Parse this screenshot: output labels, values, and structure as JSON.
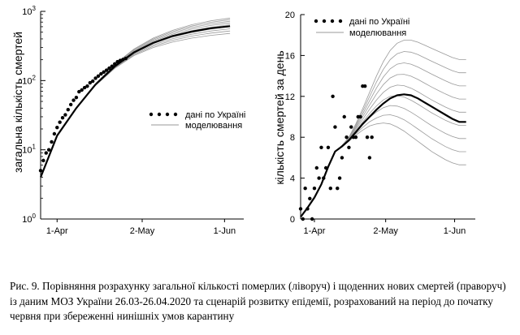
{
  "colors": {
    "axis": "#000000",
    "data": "#000000",
    "model_band": "#9a9a9a",
    "model_main": "#000000"
  },
  "legend": {
    "data_label": "дані по Україні",
    "model_label": "моделювання"
  },
  "caption": "Рис. 9. Порівняння розрахунку загальної кількості померлих (ліворуч) і щоденних нових смертей (праворуч) із даним МОЗ України 26.03-26.04.2020 та сценарій розвитку епідемії, розрахований на період до початку червня при збереженні нинішніх умов карантину",
  "chart_data": [
    {
      "type": "scatter",
      "ylabel": "загальна кількість смертей",
      "yscale": "log",
      "ylim": [
        1,
        1000
      ],
      "ytick_base": "10",
      "ytick_exponents": [
        "0",
        "1",
        "2",
        "3"
      ],
      "xticks": [
        "1-Apr",
        "2-May",
        "1-Jun"
      ],
      "xlim": [
        "2020-03-26",
        "2020-06-08"
      ],
      "legend_placement": "center-right",
      "grid": false,
      "series": [
        {
          "name": "дані по Україні",
          "kind": "points",
          "x": [
            "2020-03-26",
            "2020-03-27",
            "2020-03-28",
            "2020-03-29",
            "2020-03-30",
            "2020-03-31",
            "2020-04-01",
            "2020-04-02",
            "2020-04-03",
            "2020-04-04",
            "2020-04-05",
            "2020-04-06",
            "2020-04-07",
            "2020-04-08",
            "2020-04-09",
            "2020-04-10",
            "2020-04-11",
            "2020-04-12",
            "2020-04-13",
            "2020-04-14",
            "2020-04-15",
            "2020-04-16",
            "2020-04-17",
            "2020-04-18",
            "2020-04-19",
            "2020-04-20",
            "2020-04-21",
            "2020-04-22",
            "2020-04-23",
            "2020-04-24",
            "2020-04-25",
            "2020-04-26"
          ],
          "y": [
            5,
            7,
            9,
            10,
            13,
            17,
            21,
            25,
            29,
            32,
            38,
            45,
            52,
            57,
            69,
            73,
            79,
            83,
            93,
            98,
            108,
            116,
            125,
            133,
            141,
            151,
            161,
            174,
            187,
            195,
            201,
            209
          ]
        },
        {
          "name": "моделювання",
          "kind": "band",
          "x": [
            "2020-03-26",
            "2020-04-01",
            "2020-04-08",
            "2020-04-15",
            "2020-04-22",
            "2020-04-29",
            "2020-05-06",
            "2020-05-13",
            "2020-05-20",
            "2020-05-27",
            "2020-06-03"
          ],
          "y_low": [
            4,
            16,
            40,
            85,
            150,
            230,
            300,
            360,
            410,
            450,
            480
          ],
          "y_mid": [
            4,
            16,
            40,
            88,
            160,
            255,
            350,
            440,
            510,
            570,
            610
          ],
          "y_high": [
            4,
            16,
            40,
            90,
            172,
            285,
            410,
            530,
            640,
            730,
            800
          ],
          "curves": 9
        }
      ]
    },
    {
      "type": "scatter",
      "ylabel": "кількість смертей за день",
      "ylim": [
        0,
        20
      ],
      "yticks": [
        0,
        4,
        8,
        12,
        16,
        20
      ],
      "xticks": [
        "1-Apr",
        "2-May",
        "1-Jun"
      ],
      "xlim": [
        "2020-03-26",
        "2020-06-10"
      ],
      "legend_placement": "top-left",
      "grid": false,
      "series": [
        {
          "name": "дані по Україні",
          "kind": "points",
          "x": [
            "2020-03-26",
            "2020-03-27",
            "2020-03-28",
            "2020-03-29",
            "2020-03-30",
            "2020-03-31",
            "2020-04-01",
            "2020-04-02",
            "2020-04-03",
            "2020-04-04",
            "2020-04-05",
            "2020-04-06",
            "2020-04-07",
            "2020-04-08",
            "2020-04-09",
            "2020-04-10",
            "2020-04-11",
            "2020-04-12",
            "2020-04-13",
            "2020-04-14",
            "2020-04-15",
            "2020-04-16",
            "2020-04-17",
            "2020-04-18",
            "2020-04-19",
            "2020-04-20",
            "2020-04-21",
            "2020-04-22",
            "2020-04-23",
            "2020-04-24",
            "2020-04-25",
            "2020-04-26"
          ],
          "y": [
            1,
            0,
            3,
            1,
            2,
            0,
            3,
            5,
            4,
            7,
            4,
            5,
            7,
            3,
            12,
            9,
            3,
            4,
            6,
            10,
            8,
            7,
            9,
            8,
            8,
            10,
            10,
            13,
            13,
            8,
            6,
            8
          ]
        },
        {
          "name": "моделювання",
          "kind": "band",
          "x": [
            "2020-03-26",
            "2020-03-29",
            "2020-04-01",
            "2020-04-04",
            "2020-04-07",
            "2020-04-10",
            "2020-04-13",
            "2020-04-16",
            "2020-04-19",
            "2020-04-22",
            "2020-04-25",
            "2020-04-28",
            "2020-05-01",
            "2020-05-04",
            "2020-05-07",
            "2020-05-10",
            "2020-05-13",
            "2020-05-16",
            "2020-05-19",
            "2020-05-22",
            "2020-05-25",
            "2020-05-28",
            "2020-05-31",
            "2020-06-03",
            "2020-06-06"
          ],
          "y_mid": [
            0.2,
            1.1,
            2.1,
            3.4,
            5.1,
            6.6,
            7.1,
            7.7,
            8.5,
            9.3,
            10.0,
            10.7,
            11.3,
            11.8,
            12.1,
            12.2,
            12.1,
            11.8,
            11.4,
            11.0,
            10.6,
            10.2,
            9.8,
            9.5,
            9.5
          ],
          "y_low": [
            0.2,
            1.1,
            2.1,
            3.4,
            5.1,
            6.6,
            7.1,
            7.6,
            8.2,
            8.7,
            9.1,
            9.3,
            9.4,
            9.3,
            9.0,
            8.6,
            8.1,
            7.6,
            7.1,
            6.6,
            6.2,
            5.8,
            5.5,
            5.3,
            5.3
          ],
          "y_high": [
            0.2,
            1.1,
            2.1,
            3.4,
            5.1,
            6.6,
            7.2,
            8.0,
            9.3,
            10.8,
            12.4,
            14.0,
            15.4,
            16.5,
            17.2,
            17.5,
            17.5,
            17.3,
            17.0,
            16.7,
            16.4,
            16.1,
            15.8,
            15.6,
            15.6
          ],
          "curves": 9
        }
      ]
    }
  ]
}
